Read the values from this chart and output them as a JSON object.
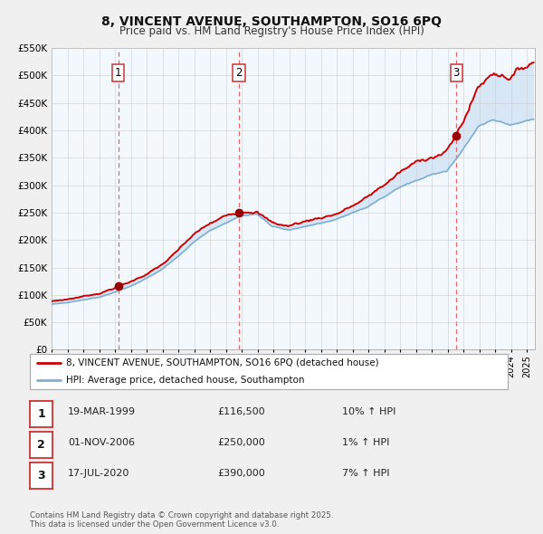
{
  "title": "8, VINCENT AVENUE, SOUTHAMPTON, SO16 6PQ",
  "subtitle": "Price paid vs. HM Land Registry's House Price Index (HPI)",
  "title_fontsize": 10,
  "subtitle_fontsize": 8.5,
  "background_color": "#f0f0f0",
  "plot_bg_color": "#ffffff",
  "x_start_year": 1995,
  "x_end_year": 2025,
  "ylim": [
    0,
    550000
  ],
  "yticks": [
    0,
    50000,
    100000,
    150000,
    200000,
    250000,
    300000,
    350000,
    400000,
    450000,
    500000,
    550000
  ],
  "red_color": "#cc0000",
  "blue_line_color": "#7bafd4",
  "blue_fill_color": "#ddeeff",
  "grid_color": "#cccccc",
  "sale_points": [
    {
      "year": 1999.21,
      "value": 116500,
      "label": "1"
    },
    {
      "year": 2006.83,
      "value": 250000,
      "label": "2"
    },
    {
      "year": 2020.54,
      "value": 390000,
      "label": "3"
    }
  ],
  "vline_color": "#dd4444",
  "legend_label_red": "8, VINCENT AVENUE, SOUTHAMPTON, SO16 6PQ (detached house)",
  "legend_label_blue": "HPI: Average price, detached house, Southampton",
  "table_rows": [
    {
      "num": "1",
      "date": "19-MAR-1999",
      "price": "£116,500",
      "hpi": "10% ↑ HPI"
    },
    {
      "num": "2",
      "date": "01-NOV-2006",
      "price": "£250,000",
      "hpi": "1% ↑ HPI"
    },
    {
      "num": "3",
      "date": "17-JUL-2020",
      "price": "£390,000",
      "hpi": "7% ↑ HPI"
    }
  ],
  "footnote": "Contains HM Land Registry data © Crown copyright and database right 2025.\nThis data is licensed under the Open Government Licence v3.0."
}
